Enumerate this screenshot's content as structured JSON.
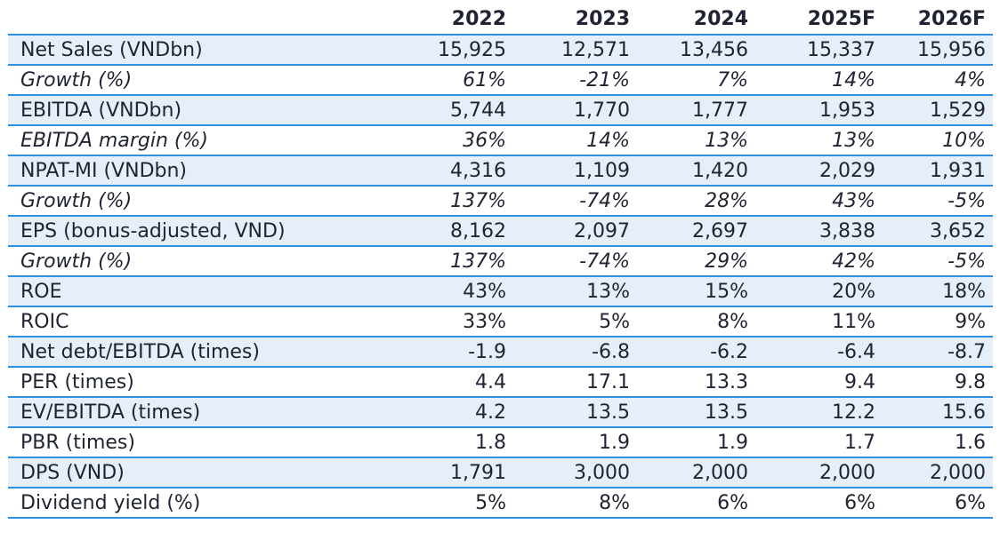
{
  "table": {
    "columns": [
      "",
      "2022",
      "2023",
      "2024",
      "2025F",
      "2026F"
    ],
    "rows": [
      {
        "label": "Net Sales (VNDbn)",
        "values": [
          "15,925",
          "12,571",
          "13,456",
          "15,337",
          "15,956"
        ]
      },
      {
        "label": "Growth (%)",
        "values": [
          "61%",
          "-21%",
          "7%",
          "14%",
          "4%"
        ]
      },
      {
        "label": "EBITDA (VNDbn)",
        "values": [
          "5,744",
          "1,770",
          "1,777",
          "1,953",
          "1,529"
        ]
      },
      {
        "label": "EBITDA margin (%)",
        "values": [
          "36%",
          "14%",
          "13%",
          "13%",
          "10%"
        ]
      },
      {
        "label": "NPAT-MI (VNDbn)",
        "values": [
          "4,316",
          "1,109",
          "1,420",
          "2,029",
          "1,931"
        ]
      },
      {
        "label": "Growth (%)",
        "values": [
          "137%",
          "-74%",
          "28%",
          "43%",
          "-5%"
        ]
      },
      {
        "label": "EPS (bonus-adjusted, VND)",
        "values": [
          "8,162",
          "2,097",
          "2,697",
          "3,838",
          "3,652"
        ]
      },
      {
        "label": "Growth (%)",
        "values": [
          "137%",
          "-74%",
          "29%",
          "42%",
          "-5%"
        ]
      },
      {
        "label": "ROE",
        "values": [
          "43%",
          "13%",
          "15%",
          "20%",
          "18%"
        ]
      },
      {
        "label": "ROIC",
        "values": [
          "33%",
          "5%",
          "8%",
          "11%",
          "9%"
        ]
      },
      {
        "label": "Net debt/EBITDA (times)",
        "values": [
          "-1.9",
          "-6.8",
          "-6.2",
          "-6.4",
          "-8.7"
        ]
      },
      {
        "label": "PER (times)",
        "values": [
          "4.4",
          "17.1",
          "13.3",
          "9.4",
          "9.8"
        ]
      },
      {
        "label": "EV/EBITDA (times)",
        "values": [
          "4.2",
          "13.5",
          "13.5",
          "12.2",
          "15.6"
        ]
      },
      {
        "label": "PBR (times)",
        "values": [
          "1.8",
          "1.9",
          "1.9",
          "1.7",
          "1.6"
        ]
      },
      {
        "label": "DPS (VND)",
        "values": [
          "1,791",
          "3,000",
          "2,000",
          "2,000",
          "2,000"
        ]
      },
      {
        "label": "Dividend yield (%)",
        "values": [
          "5%",
          "8%",
          "6%",
          "6%",
          "6%"
        ]
      }
    ]
  },
  "colors": {
    "row_shade": "#e6eef8",
    "rule": "#2f8fe0",
    "text": "#1f2333"
  }
}
